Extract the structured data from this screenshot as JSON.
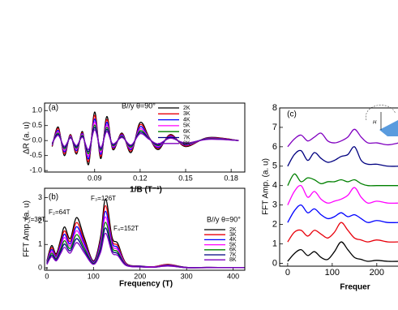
{
  "chart_data": [
    {
      "type": "line",
      "panel_label": "(a)",
      "annotation": "B//y θ=90°",
      "xlabel": "1/B (T⁻¹)",
      "ylabel": "ΔR (a. u)",
      "legend": "upper right",
      "xlim": [
        0.057,
        0.189
      ],
      "ylim": [
        -1.05,
        1.25
      ],
      "xticks": [
        0.09,
        0.12,
        0.15,
        0.18
      ],
      "yticks": [
        {
          "value": -1,
          "label": "-1.0"
        },
        {
          "value": -0.5,
          "label": "-0.5"
        },
        {
          "value": 0,
          "label": "0.0"
        },
        {
          "value": 0.5,
          "label": "0.5"
        },
        {
          "value": 1,
          "label": "1.0"
        }
      ],
      "x": [
        0.062,
        0.066,
        0.07,
        0.074,
        0.078,
        0.082,
        0.086,
        0.09,
        0.094,
        0.098,
        0.102,
        0.108,
        0.114,
        0.12,
        0.126,
        0.132,
        0.14,
        0.15,
        0.165,
        0.185
      ],
      "series": [
        {
          "name": "2K",
          "color": "#000000",
          "values": [
            -0.2,
            0.45,
            -0.5,
            0.2,
            -0.45,
            0.3,
            -0.8,
            0.95,
            -0.6,
            0.8,
            -0.3,
            0.25,
            -0.4,
            0.6,
            0.1,
            -0.3,
            0.2,
            -0.2,
            0.1,
            0.0
          ]
        },
        {
          "name": "3K",
          "color": "#e8000b",
          "values": [
            -0.18,
            0.4,
            -0.44,
            0.18,
            -0.4,
            0.26,
            -0.7,
            0.84,
            -0.53,
            0.7,
            -0.26,
            0.22,
            -0.35,
            0.53,
            0.09,
            -0.26,
            0.18,
            -0.18,
            0.09,
            0.0
          ]
        },
        {
          "name": "4K",
          "color": "#0000ff",
          "values": [
            -0.15,
            0.34,
            -0.38,
            0.15,
            -0.34,
            0.23,
            -0.61,
            0.72,
            -0.46,
            0.61,
            -0.23,
            0.19,
            -0.3,
            0.46,
            0.08,
            -0.23,
            0.15,
            -0.15,
            0.08,
            0.0
          ]
        },
        {
          "name": "5K",
          "color": "#ff00ff",
          "values": [
            -0.13,
            0.29,
            -0.33,
            0.13,
            -0.29,
            0.2,
            -0.52,
            0.62,
            -0.39,
            0.52,
            -0.2,
            0.16,
            -0.26,
            0.39,
            0.07,
            -0.2,
            0.13,
            -0.13,
            0.07,
            0.0
          ]
        },
        {
          "name": "6K",
          "color": "#008000",
          "values": [
            -0.11,
            0.25,
            -0.28,
            0.11,
            -0.25,
            0.17,
            -0.44,
            0.52,
            -0.33,
            0.44,
            -0.17,
            0.14,
            -0.22,
            0.33,
            0.06,
            -0.17,
            0.11,
            -0.11,
            0.06,
            0.0
          ]
        },
        {
          "name": "7K",
          "color": "#000080",
          "values": [
            -0.09,
            0.21,
            -0.23,
            0.09,
            -0.21,
            0.14,
            -0.37,
            0.44,
            -0.28,
            0.37,
            -0.14,
            0.12,
            -0.18,
            0.28,
            0.05,
            -0.14,
            0.09,
            -0.09,
            0.05,
            0.0
          ]
        },
        {
          "name": "8K",
          "color": "#8000c0",
          "values": [
            -0.08,
            0.17,
            -0.19,
            0.08,
            -0.17,
            0.11,
            -0.3,
            0.36,
            -0.23,
            0.3,
            -0.11,
            0.1,
            -0.15,
            0.23,
            0.04,
            -0.11,
            0.08,
            -0.08,
            0.04,
            0.0
          ]
        }
      ]
    },
    {
      "type": "line",
      "panel_label": "(b)",
      "annotation": "B//y θ=90°",
      "peak_labels": [
        "F₁=38T",
        "F₂=64T",
        "F₃=126T",
        "F₄=152T"
      ],
      "xlabel": "Frequency (T)",
      "ylabel": "FFT Amp. (a. u)",
      "legend": "center right",
      "xlim": [
        -5,
        425
      ],
      "ylim": [
        -0.1,
        3.4
      ],
      "xticks": [
        0,
        100,
        200,
        300,
        400
      ],
      "yticks": [
        0,
        1,
        2,
        3
      ],
      "x": [
        0,
        10,
        20,
        30,
        38,
        50,
        64,
        80,
        100,
        115,
        126,
        140,
        152,
        170,
        200,
        230,
        260,
        300,
        350,
        400,
        425
      ],
      "series": [
        {
          "name": "2K",
          "color": "#000000",
          "values": [
            0.3,
            0.95,
            0.6,
            1.25,
            1.75,
            1.25,
            2.15,
            1.3,
            0.3,
            1.3,
            2.95,
            1.3,
            1.05,
            0.2,
            0.08,
            0.05,
            0.15,
            0.02,
            0.02,
            0.01,
            0.01
          ]
        },
        {
          "name": "3K",
          "color": "#e8000b",
          "values": [
            0.27,
            0.86,
            0.54,
            1.13,
            1.58,
            1.13,
            1.94,
            1.17,
            0.27,
            1.17,
            2.66,
            1.17,
            0.95,
            0.18,
            0.07,
            0.05,
            0.14,
            0.02,
            0.02,
            0.01,
            0.01
          ]
        },
        {
          "name": "4K",
          "color": "#0000ff",
          "values": [
            0.25,
            0.78,
            0.49,
            1.03,
            1.44,
            1.03,
            1.76,
            1.07,
            0.25,
            1.07,
            2.42,
            1.07,
            0.86,
            0.16,
            0.07,
            0.04,
            0.12,
            0.02,
            0.02,
            0.01,
            0.01
          ]
        },
        {
          "name": "5K",
          "color": "#ff00ff",
          "values": [
            0.22,
            0.7,
            0.44,
            0.93,
            1.3,
            0.93,
            1.59,
            0.96,
            0.22,
            0.96,
            2.18,
            0.96,
            0.78,
            0.15,
            0.06,
            0.04,
            0.11,
            0.01,
            0.01,
            0.01,
            0.01
          ]
        },
        {
          "name": "6K",
          "color": "#008000",
          "values": [
            0.2,
            0.63,
            0.4,
            0.83,
            1.16,
            0.83,
            1.42,
            0.86,
            0.2,
            0.86,
            1.95,
            0.86,
            0.69,
            0.13,
            0.05,
            0.03,
            0.1,
            0.01,
            0.01,
            0.01,
            0.01
          ]
        },
        {
          "name": "7K",
          "color": "#000080",
          "values": [
            0.17,
            0.55,
            0.35,
            0.73,
            1.02,
            0.73,
            1.25,
            0.75,
            0.17,
            0.75,
            1.71,
            0.75,
            0.61,
            0.12,
            0.05,
            0.03,
            0.09,
            0.01,
            0.01,
            0.01,
            0.01
          ]
        },
        {
          "name": "8K",
          "color": "#8000c0",
          "values": [
            0.15,
            0.48,
            0.3,
            0.63,
            0.88,
            0.63,
            1.08,
            0.65,
            0.15,
            0.65,
            1.48,
            0.65,
            0.53,
            0.1,
            0.04,
            0.03,
            0.08,
            0.01,
            0.01,
            0.01,
            0.01
          ]
        }
      ]
    },
    {
      "type": "line",
      "panel_label": "(c)",
      "xlabel": "Frequer",
      "ylabel": "FFT Amp. (a. u)",
      "xlim": [
        -18,
        264
      ],
      "ylim": [
        -0.15,
        8
      ],
      "xticks": [
        0,
        100,
        200
      ],
      "yticks": [
        0,
        1,
        2,
        3,
        4,
        5,
        6,
        7,
        8
      ],
      "x": [
        0,
        15,
        30,
        45,
        60,
        75,
        90,
        105,
        120,
        135,
        150,
        165,
        180,
        200,
        225,
        250
      ],
      "series": [
        {
          "color": "#000000",
          "values": [
            0.1,
            0.5,
            0.7,
            0.4,
            0.6,
            0.3,
            0.2,
            0.6,
            1.1,
            0.7,
            0.3,
            0.2,
            0.1,
            0.15,
            0.1,
            0.1
          ]
        },
        {
          "color": "#e8000b",
          "values": [
            1.1,
            1.6,
            1.7,
            1.4,
            1.7,
            1.5,
            1.3,
            1.6,
            2.1,
            1.7,
            1.3,
            1.2,
            1.1,
            1.2,
            1.1,
            1.1
          ]
        },
        {
          "color": "#0000ff",
          "values": [
            2.1,
            2.7,
            3.0,
            2.6,
            2.8,
            2.5,
            2.3,
            2.4,
            2.6,
            2.4,
            2.5,
            2.3,
            2.1,
            2.2,
            2.1,
            2.1
          ]
        },
        {
          "color": "#ff00ff",
          "values": [
            3.0,
            3.7,
            4.0,
            3.4,
            3.7,
            3.3,
            3.1,
            3.2,
            3.3,
            3.5,
            3.9,
            3.4,
            3.1,
            3.2,
            3.1,
            3.1
          ]
        },
        {
          "color": "#008000",
          "values": [
            4.0,
            4.6,
            4.2,
            4.4,
            4.3,
            4.1,
            4.2,
            4.2,
            4.3,
            4.2,
            4.3,
            4.1,
            4.0,
            4.0,
            4.0,
            4.0
          ]
        },
        {
          "color": "#000080",
          "values": [
            5.0,
            5.6,
            5.8,
            5.3,
            5.7,
            5.4,
            5.2,
            5.3,
            5.5,
            5.6,
            6.0,
            5.3,
            5.1,
            5.1,
            5.0,
            5.0
          ]
        },
        {
          "color": "#8000c0",
          "values": [
            6.0,
            6.4,
            6.6,
            6.3,
            6.5,
            6.7,
            6.3,
            6.2,
            6.3,
            6.5,
            6.9,
            6.5,
            6.2,
            6.2,
            6.1,
            6.2
          ]
        }
      ]
    }
  ]
}
